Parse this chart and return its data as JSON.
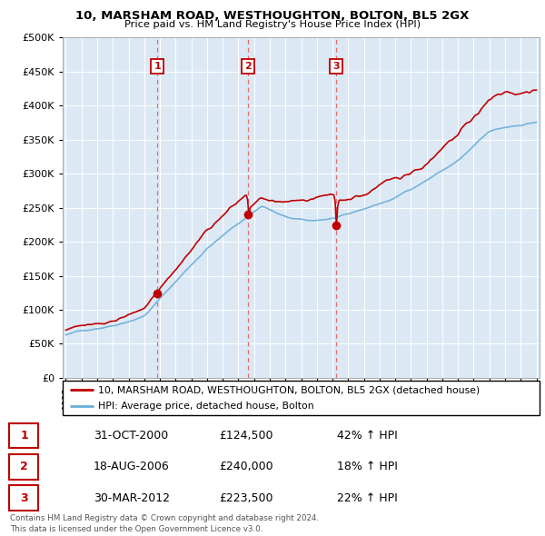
{
  "title": "10, MARSHAM ROAD, WESTHOUGHTON, BOLTON, BL5 2GX",
  "subtitle": "Price paid vs. HM Land Registry's House Price Index (HPI)",
  "legend_line1": "10, MARSHAM ROAD, WESTHOUGHTON, BOLTON, BL5 2GX (detached house)",
  "legend_line2": "HPI: Average price, detached house, Bolton",
  "transactions": [
    {
      "num": 1,
      "date": "31-OCT-2000",
      "price": 124500,
      "hpi_change": "42% ↑ HPI",
      "year": 2000.83
    },
    {
      "num": 2,
      "date": "18-AUG-2006",
      "price": 240000,
      "hpi_change": "18% ↑ HPI",
      "year": 2006.63
    },
    {
      "num": 3,
      "date": "30-MAR-2012",
      "price": 223500,
      "hpi_change": "22% ↑ HPI",
      "year": 2012.25
    }
  ],
  "footer1": "Contains HM Land Registry data © Crown copyright and database right 2024.",
  "footer2": "This data is licensed under the Open Government Licence v3.0.",
  "hpi_color": "#6aaed6",
  "price_color": "#c00000",
  "vline_color": "#e06060",
  "chart_bg": "#dce9f5",
  "ylim": [
    0,
    500000
  ],
  "yticks": [
    0,
    50000,
    100000,
    150000,
    200000,
    250000,
    300000,
    350000,
    400000,
    450000,
    500000
  ],
  "xstart_year": 1995,
  "xend_year": 2025
}
